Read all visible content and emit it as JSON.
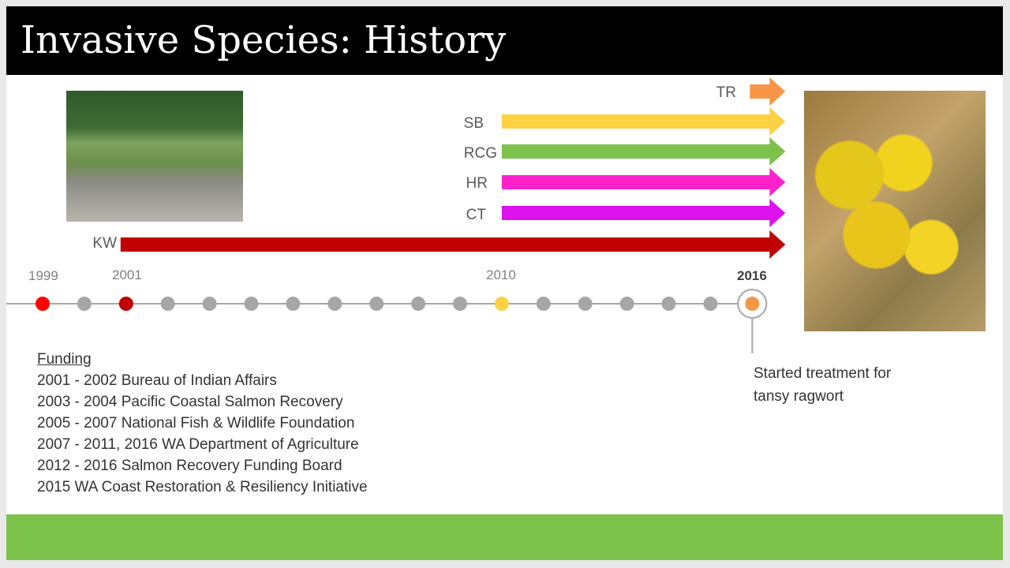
{
  "title": "Invasive Species: History",
  "arrows": [
    {
      "label": "TR",
      "color": "#f79646",
      "start_year": 2016,
      "end_year": 2016
    },
    {
      "label": "SB",
      "color": "#fcd144",
      "start_year": 2010,
      "end_year": 2016
    },
    {
      "label": "RCG",
      "color": "#7dc24b",
      "start_year": 2010,
      "end_year": 2016
    },
    {
      "label": "HR",
      "color": "#ff22cc",
      "start_year": 2010,
      "end_year": 2016
    },
    {
      "label": "CT",
      "color": "#dd11ee",
      "start_year": 2010,
      "end_year": 2016
    },
    {
      "label": "KW",
      "color": "#c00000",
      "start_year": 2001,
      "end_year": 2016
    }
  ],
  "timeline": {
    "start_year": 1999,
    "end_year": 2016,
    "year_labels": [
      "1999",
      "2001",
      "2010",
      "2016"
    ],
    "highlights": {
      "1999": "#ff0000",
      "2001": "#c00000",
      "2010": "#fcd144",
      "2016": "#f79646"
    },
    "dot_color": "#a6a6a6",
    "line_color": "#a6a6a6"
  },
  "funding": {
    "heading": "Funding",
    "lines": [
      "2001 - 2002 Bureau of Indian Affairs",
      "2003 - 2004 Pacific Coastal Salmon Recovery",
      "2005 - 2007 National Fish & Wildlife Foundation",
      "2007 - 2011, 2016 WA Department of Agriculture",
      "2012 - 2016 Salmon Recovery Funding Board",
      "2015 WA Coast Restoration & Resiliency Initiative"
    ]
  },
  "annotation": {
    "line1": "Started treatment for",
    "line2": "tansy ragwort"
  },
  "colors": {
    "title_bar": "#000000",
    "footer_bar": "#7dc24b"
  }
}
